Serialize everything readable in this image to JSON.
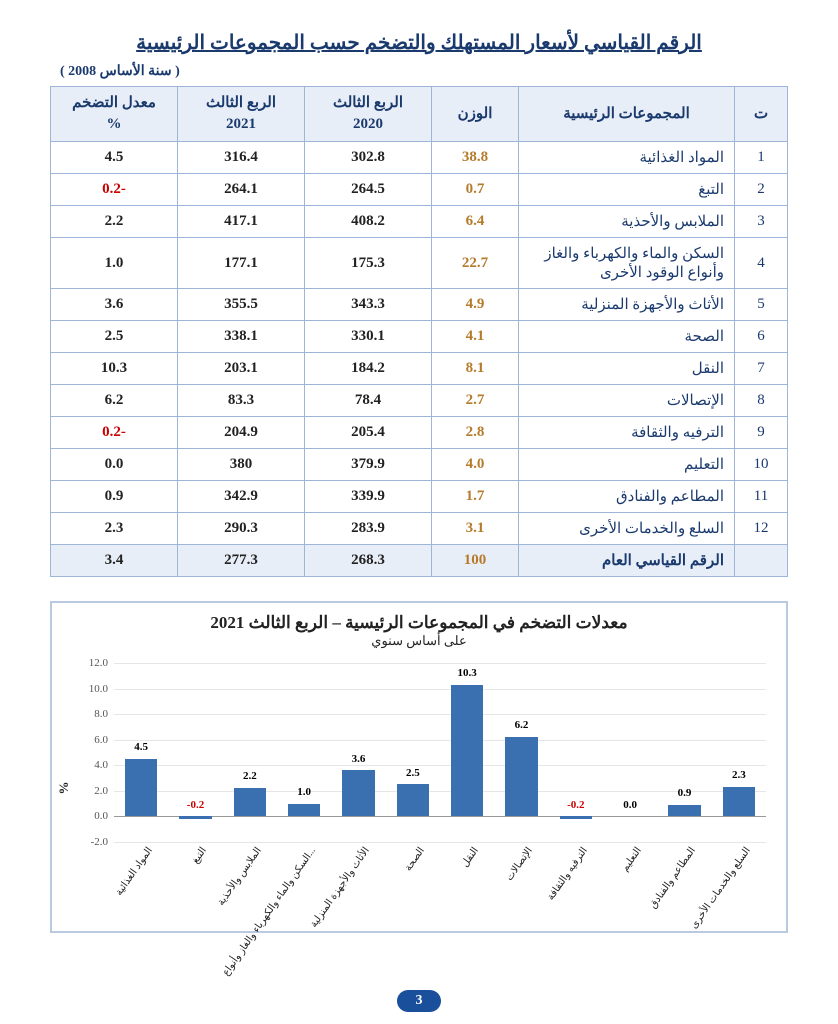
{
  "title": "الرقم القياسي لأسعار المستهلك والتضخم حسب المجموعات الرئيسية",
  "base_year_note": "( سنة الأساس 2008 )",
  "page_number": "3",
  "table": {
    "headers": {
      "idx": "ت",
      "group": "المجموعات الرئيسية",
      "weight": "الوزن",
      "q2020": "الربع الثالث\n2020",
      "q2021": "الربع الثالث\n2021",
      "rate": "معدل التضخم\n%"
    },
    "rows": [
      {
        "idx": "1",
        "group": "المواد الغذائية",
        "weight": "38.8",
        "q2020": "302.8",
        "q2021": "316.4",
        "rate": "4.5",
        "neg": false
      },
      {
        "idx": "2",
        "group": "التبغ",
        "weight": "0.7",
        "q2020": "264.5",
        "q2021": "264.1",
        "rate": "-0.2",
        "neg": true
      },
      {
        "idx": "3",
        "group": "الملابس والأحذية",
        "weight": "6.4",
        "q2020": "408.2",
        "q2021": "417.1",
        "rate": "2.2",
        "neg": false
      },
      {
        "idx": "4",
        "group": "السكن والماء والكهرباء والغاز وأنواع الوقود الأخرى",
        "weight": "22.7",
        "q2020": "175.3",
        "q2021": "177.1",
        "rate": "1.0",
        "neg": false
      },
      {
        "idx": "5",
        "group": "الأثاث والأجهزة المنزلية",
        "weight": "4.9",
        "q2020": "343.3",
        "q2021": "355.5",
        "rate": "3.6",
        "neg": false
      },
      {
        "idx": "6",
        "group": "الصحة",
        "weight": "4.1",
        "q2020": "330.1",
        "q2021": "338.1",
        "rate": "2.5",
        "neg": false
      },
      {
        "idx": "7",
        "group": "النقل",
        "weight": "8.1",
        "q2020": "184.2",
        "q2021": "203.1",
        "rate": "10.3",
        "neg": false
      },
      {
        "idx": "8",
        "group": "الإتصالات",
        "weight": "2.7",
        "q2020": "78.4",
        "q2021": "83.3",
        "rate": "6.2",
        "neg": false
      },
      {
        "idx": "9",
        "group": "الترفيه والثقافة",
        "weight": "2.8",
        "q2020": "205.4",
        "q2021": "204.9",
        "rate": "-0.2",
        "neg": true
      },
      {
        "idx": "10",
        "group": "التعليم",
        "weight": "4.0",
        "q2020": "379.9",
        "q2021": "380",
        "rate": "0.0",
        "neg": false
      },
      {
        "idx": "11",
        "group": "المطاعم والفنادق",
        "weight": "1.7",
        "q2020": "339.9",
        "q2021": "342.9",
        "rate": "0.9",
        "neg": false
      },
      {
        "idx": "12",
        "group": "السلع والخدمات الأخرى",
        "weight": "3.1",
        "q2020": "283.9",
        "q2021": "290.3",
        "rate": "2.3",
        "neg": false
      }
    ],
    "summary": {
      "group": "الرقم القياسي العام",
      "weight": "100",
      "q2020": "268.3",
      "q2021": "277.3",
      "rate": "3.4"
    }
  },
  "chart": {
    "title": "معدلات التضخم في المجموعات الرئيسية – الربع الثالث 2021",
    "subtitle": "على أساس سنوي",
    "ylabel": "%",
    "ymin": -2.0,
    "ymax": 12.0,
    "ystep": 2.0,
    "bar_color": "#3a6fb0",
    "neg_label_color": "#cc0000",
    "grid_color": "#e6e6e6",
    "bars": [
      {
        "label": "المواد الغذائية",
        "value": 4.5,
        "neg": false
      },
      {
        "label": "التبغ",
        "value": -0.2,
        "neg": true
      },
      {
        "label": "الملابس والأحذية",
        "value": 2.2,
        "neg": false
      },
      {
        "label": "السكن والماء والكهرباء والغاز وأنواع...",
        "value": 1.0,
        "neg": false
      },
      {
        "label": "الأثاث والأجهزة المنزلية",
        "value": 3.6,
        "neg": false
      },
      {
        "label": "الصحة",
        "value": 2.5,
        "neg": false
      },
      {
        "label": "النقل",
        "value": 10.3,
        "neg": false
      },
      {
        "label": "الإتصالات",
        "value": 6.2,
        "neg": false
      },
      {
        "label": "الترفيه والثقافة",
        "value": -0.2,
        "neg": true
      },
      {
        "label": "التعليم",
        "value": 0.0,
        "neg": false
      },
      {
        "label": "المطاعم والفنادق",
        "value": 0.9,
        "neg": false
      },
      {
        "label": "السلع والخدمات الأخرى",
        "value": 2.3,
        "neg": false
      }
    ]
  }
}
